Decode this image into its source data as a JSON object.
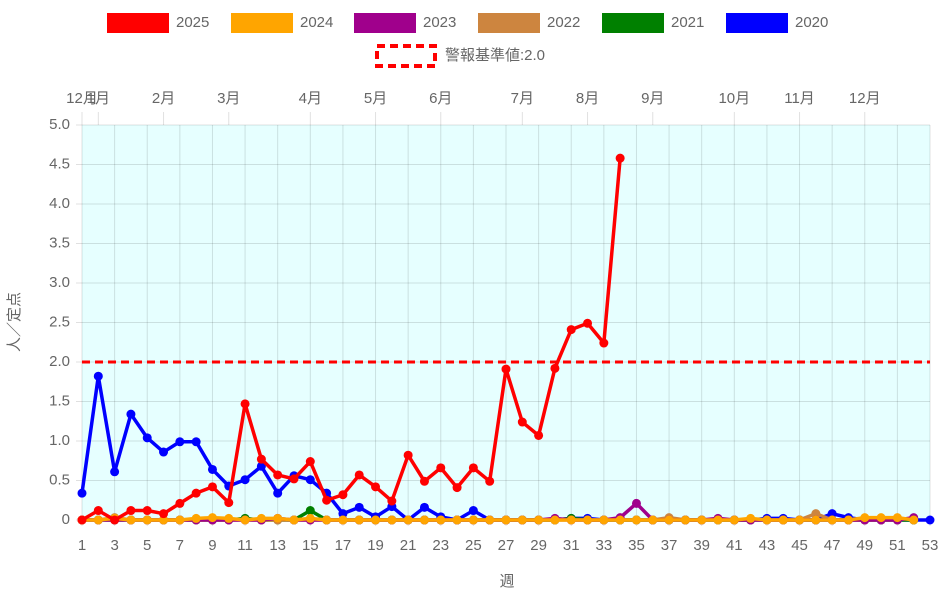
{
  "chart_data": {
    "type": "line",
    "x": [
      1,
      2,
      3,
      4,
      5,
      6,
      7,
      8,
      9,
      10,
      11,
      12,
      13,
      14,
      15,
      16,
      17,
      18,
      19,
      20,
      21,
      22,
      23,
      24,
      25,
      26,
      27,
      28,
      29,
      30,
      31,
      32,
      33,
      34,
      35,
      36,
      37,
      38,
      39,
      40,
      41,
      42,
      43,
      44,
      45,
      46,
      47,
      48,
      49,
      50,
      51,
      52,
      53
    ],
    "xlim": [
      1,
      53
    ],
    "xticks": [
      1,
      3,
      5,
      7,
      9,
      11,
      13,
      15,
      17,
      19,
      21,
      23,
      25,
      27,
      29,
      31,
      33,
      35,
      37,
      39,
      41,
      43,
      45,
      47,
      49,
      51,
      53
    ],
    "x2ticks": [
      {
        "value": 1,
        "label": "12月"
      },
      {
        "value": 2,
        "label": "1月"
      },
      {
        "value": 6,
        "label": "2月"
      },
      {
        "value": 10,
        "label": "3月"
      },
      {
        "value": 15,
        "label": "4月"
      },
      {
        "value": 19,
        "label": "5月"
      },
      {
        "value": 23,
        "label": "6月"
      },
      {
        "value": 28,
        "label": "7月"
      },
      {
        "value": 32,
        "label": "8月"
      },
      {
        "value": 36,
        "label": "9月"
      },
      {
        "value": 41,
        "label": "10月"
      },
      {
        "value": 45,
        "label": "11月"
      },
      {
        "value": 49,
        "label": "12月"
      }
    ],
    "ylim": [
      0,
      5
    ],
    "yticks": [
      0,
      0.5,
      {
        "value": 1,
        "label": "1.0"
      },
      1.5,
      {
        "value": 2,
        "label": "2.0"
      },
      2.5,
      {
        "value": 3,
        "label": "3.0"
      },
      3.5,
      {
        "value": 4,
        "label": "4.0"
      },
      4.5,
      {
        "value": 5,
        "label": "5.0"
      }
    ],
    "xlabel": "週",
    "ylabel": "人／定点",
    "grid": true,
    "threshold": {
      "label": "警報基準値:2.0",
      "value": 2,
      "color": "#ff0000"
    },
    "series": [
      {
        "name": "2025",
        "color": "#ff0000",
        "values": [
          0,
          0.12,
          0,
          0.12,
          0.12,
          0.08,
          0.21,
          0.34,
          0.42,
          0.22,
          1.47,
          0.77,
          0.57,
          0.52,
          0.74,
          0.25,
          0.32,
          0.57,
          0.42,
          0.24,
          0.82,
          0.49,
          0.66,
          0.41,
          0.66,
          0.49,
          1.91,
          1.24,
          1.07,
          1.92,
          2.41,
          2.49,
          2.24,
          4.58,
          null,
          null,
          null,
          null,
          null,
          null,
          null,
          null,
          null,
          null,
          null,
          null,
          null,
          null,
          null,
          null,
          null,
          null,
          null
        ]
      },
      {
        "name": "2024",
        "color": "#ffa500",
        "values": [
          0,
          0,
          0.02,
          0,
          0,
          0,
          0,
          0.02,
          0.03,
          0.02,
          0,
          0.02,
          0.02,
          0,
          0.02,
          0,
          0,
          0,
          0,
          0,
          0,
          0,
          0,
          0,
          0,
          0,
          0,
          0,
          0,
          0,
          0,
          0,
          0,
          0,
          0,
          0,
          0,
          0,
          0,
          0,
          0,
          0.02,
          0,
          0,
          0,
          0,
          0,
          0,
          0.03,
          0.03,
          0.03,
          0,
          null
        ]
      },
      {
        "name": "2023",
        "color": "#a0008c",
        "values": [
          0,
          0,
          0,
          0,
          0,
          0,
          0,
          0,
          0,
          0,
          0,
          0,
          0.02,
          0,
          0,
          0,
          0,
          0,
          0,
          0,
          0,
          0,
          0,
          0,
          0,
          0,
          0,
          0,
          0,
          0.02,
          0,
          0,
          0,
          0.03,
          0.21,
          0,
          0,
          0,
          0,
          0.02,
          0,
          0,
          0,
          0,
          0,
          0,
          0,
          0,
          0,
          0,
          0,
          0.03,
          null
        ]
      },
      {
        "name": "2022",
        "color": "#cd853f",
        "values": [
          0,
          0,
          0.03,
          0,
          0,
          0,
          0,
          0,
          0,
          0,
          0,
          0,
          0,
          0,
          0,
          0,
          0,
          0,
          0,
          0,
          0,
          0,
          0,
          0,
          0,
          0,
          0,
          0,
          0,
          0,
          0,
          0,
          0,
          0,
          0,
          0,
          0.03,
          0,
          0,
          0,
          0,
          0,
          0,
          0,
          0,
          0.08,
          0,
          0,
          0,
          0,
          0,
          null,
          null
        ]
      },
      {
        "name": "2021",
        "color": "#008000",
        "values": [
          0,
          0,
          0,
          0,
          0,
          0,
          0,
          0,
          0,
          0,
          0.02,
          0,
          0,
          0,
          0.12,
          0,
          0,
          0,
          0,
          0,
          0,
          0,
          0,
          0,
          0,
          0,
          0,
          0,
          0,
          0,
          0.02,
          0,
          0,
          0,
          0,
          0,
          0,
          0,
          0,
          0,
          0,
          0,
          0,
          0,
          0,
          0,
          0,
          0,
          0,
          0,
          0,
          0,
          null
        ]
      },
      {
        "name": "2020",
        "color": "#0000ff",
        "values": [
          0.34,
          1.82,
          0.61,
          1.34,
          1.04,
          0.86,
          0.99,
          0.99,
          0.64,
          0.43,
          0.51,
          0.68,
          0.34,
          0.56,
          0.51,
          0.34,
          0.08,
          0.16,
          0.04,
          0.17,
          0,
          0.16,
          0.04,
          0,
          0.12,
          0,
          0,
          0,
          0,
          0,
          0.02,
          0.02,
          0,
          0,
          0,
          0,
          0,
          0,
          0,
          0,
          0,
          0,
          0.02,
          0.02,
          0,
          0,
          0.08,
          0.03,
          0,
          0,
          0,
          0,
          0
        ]
      }
    ]
  }
}
